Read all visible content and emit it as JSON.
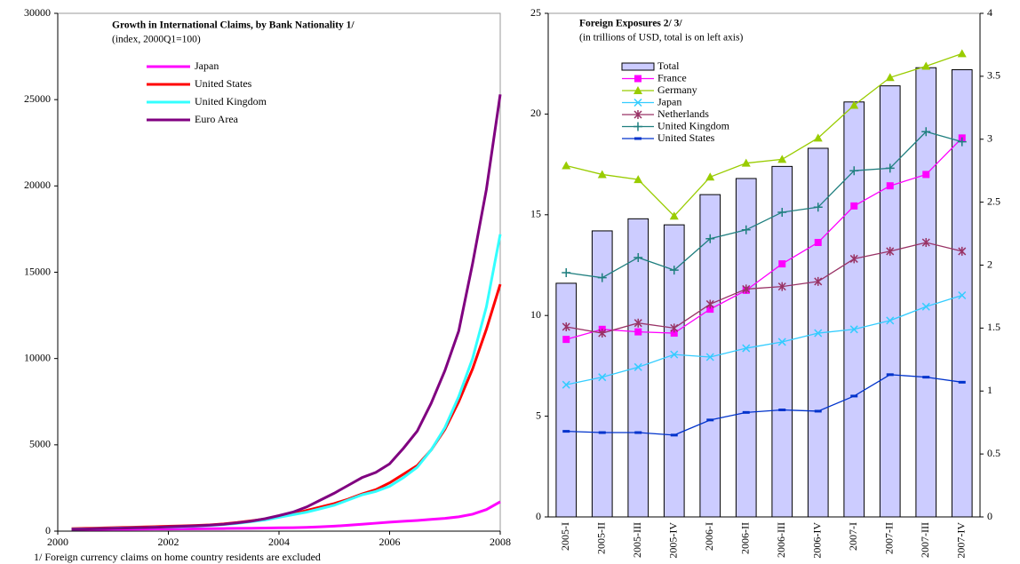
{
  "chart_data": [
    {
      "type": "line",
      "title": "Growth in International Claims, by Bank Nationality 1/",
      "subtitle": "(index, 2000Q1=100)",
      "note": "1/ Foreign currency claims on home country residents are excluded",
      "x": [
        2000.25,
        2000.5,
        2000.75,
        2001,
        2001.25,
        2001.5,
        2001.75,
        2002,
        2002.25,
        2002.5,
        2002.75,
        2003,
        2003.25,
        2003.5,
        2003.75,
        2004,
        2004.25,
        2004.5,
        2004.75,
        2005,
        2005.25,
        2005.5,
        2005.75,
        2006,
        2006.25,
        2006.5,
        2006.75,
        2007,
        2007.25,
        2007.5,
        2007.75,
        2008
      ],
      "xlim": [
        2000,
        2008
      ],
      "xticks": [
        2000,
        2002,
        2004,
        2006,
        2008
      ],
      "ylim": [
        0,
        30000
      ],
      "yticks": [
        0,
        5000,
        10000,
        15000,
        20000,
        25000,
        30000
      ],
      "series": [
        {
          "name": "Japan",
          "color": "#ff00ff",
          "values": [
            100,
            100,
            105,
            110,
            110,
            115,
            120,
            125,
            130,
            135,
            140,
            150,
            160,
            170,
            180,
            190,
            200,
            220,
            250,
            290,
            340,
            400,
            460,
            520,
            570,
            620,
            680,
            740,
            830,
            980,
            1250,
            1700
          ]
        },
        {
          "name": "United States",
          "color": "#ff0000",
          "values": [
            140,
            160,
            180,
            200,
            220,
            240,
            260,
            280,
            300,
            330,
            360,
            420,
            500,
            600,
            700,
            850,
            1000,
            1200,
            1400,
            1600,
            1850,
            2150,
            2400,
            2800,
            3300,
            3800,
            4700,
            5900,
            7500,
            9400,
            11700,
            14300
          ]
        },
        {
          "name": "United Kingdom",
          "color": "#33ffff",
          "values": [
            115,
            130,
            150,
            165,
            185,
            200,
            220,
            240,
            260,
            290,
            330,
            380,
            450,
            550,
            650,
            800,
            950,
            1100,
            1300,
            1500,
            1800,
            2100,
            2300,
            2600,
            3100,
            3700,
            4700,
            6000,
            7800,
            10000,
            13000,
            17200
          ]
        },
        {
          "name": "Euro Area",
          "color": "#800080",
          "values": [
            110,
            120,
            140,
            160,
            180,
            200,
            220,
            250,
            280,
            310,
            350,
            400,
            480,
            580,
            720,
            900,
            1100,
            1400,
            1800,
            2200,
            2650,
            3100,
            3400,
            3900,
            4800,
            5800,
            7400,
            9300,
            11600,
            15500,
            19800,
            25300
          ]
        }
      ]
    },
    {
      "type": "combo",
      "title": "Foreign Exposures 2/ 3/",
      "subtitle": "(in trillions of USD, total is on left axis)",
      "categories": [
        "2005-I",
        "2005-II",
        "2005-III",
        "2005-IV",
        "2006-I",
        "2006-II",
        "2006-III",
        "2006-IV",
        "2007-I",
        "2007-II",
        "2007-III",
        "2007-IV"
      ],
      "ylim": [
        0,
        25
      ],
      "yticks": [
        0,
        5,
        10,
        15,
        20,
        25
      ],
      "y2lim": [
        0,
        4
      ],
      "y2ticks": [
        0,
        0.5,
        1,
        1.5,
        2,
        2.5,
        3,
        3.5,
        4
      ],
      "series": [
        {
          "name": "Total",
          "color": "#ccccff",
          "values": [
            11.6,
            14.2,
            14.8,
            14.5,
            16.0,
            16.8,
            17.4,
            18.3,
            20.6,
            21.4,
            22.3,
            22.2
          ]
        },
        {
          "name": "France",
          "color": "#ff00ff",
          "marker": "square",
          "axis": "y2",
          "values": [
            1.41,
            1.49,
            1.47,
            1.46,
            1.65,
            1.8,
            2.01,
            2.18,
            2.47,
            2.63,
            2.72,
            3.01
          ]
        },
        {
          "name": "Germany",
          "color": "#99cc00",
          "marker": "triangle",
          "axis": "y2",
          "values": [
            2.79,
            2.72,
            2.68,
            2.39,
            2.7,
            2.81,
            2.84,
            3.01,
            3.27,
            3.49,
            3.58,
            3.68
          ]
        },
        {
          "name": "Japan",
          "color": "#33ccff",
          "marker": "x",
          "axis": "y2",
          "values": [
            1.05,
            1.11,
            1.19,
            1.29,
            1.27,
            1.34,
            1.39,
            1.46,
            1.49,
            1.56,
            1.67,
            1.76
          ]
        },
        {
          "name": "Netherlands",
          "color": "#993366",
          "marker": "star",
          "axis": "y2",
          "values": [
            1.51,
            1.46,
            1.54,
            1.5,
            1.69,
            1.81,
            1.83,
            1.87,
            2.05,
            2.11,
            2.18,
            2.11
          ]
        },
        {
          "name": "United Kingdom",
          "color": "#1f7f7f",
          "marker": "plus",
          "axis": "y2",
          "values": [
            1.94,
            1.9,
            2.06,
            1.96,
            2.21,
            2.28,
            2.42,
            2.46,
            2.75,
            2.77,
            3.06,
            2.98
          ]
        },
        {
          "name": "United States",
          "color": "#0033cc",
          "marker": "dash",
          "axis": "y2",
          "values": [
            0.68,
            0.67,
            0.67,
            0.65,
            0.77,
            0.83,
            0.85,
            0.84,
            0.96,
            1.13,
            1.11,
            1.07
          ]
        }
      ]
    }
  ]
}
